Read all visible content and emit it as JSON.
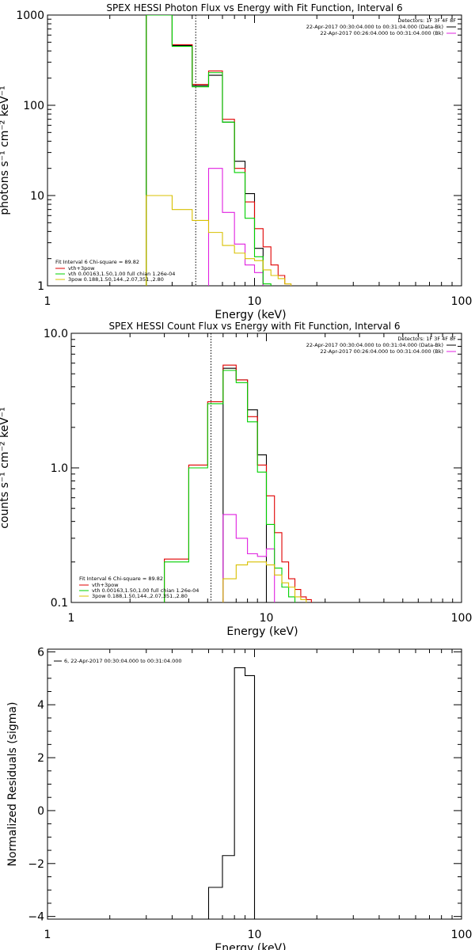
{
  "chart_data": [
    {
      "type": "step",
      "title": "SPEX HESSI Photon Flux vs Energy with Fit Function, Interval 6",
      "xlabel": "Energy (keV)",
      "ylabel": "photons s⁻¹ cm⁻² keV⁻¹",
      "xscale": "log",
      "yscale": "log",
      "xlim": [
        1,
        100
      ],
      "ylim": [
        1,
        1000
      ],
      "xticks": [
        {
          "value": 1,
          "label": "1"
        },
        {
          "value": 10,
          "label": "10"
        },
        {
          "value": 100,
          "label": "100"
        }
      ],
      "yticks": [
        {
          "value": 1,
          "label": "1"
        },
        {
          "value": 10,
          "label": "10"
        },
        {
          "value": 100,
          "label": "100"
        },
        {
          "value": 1000,
          "label": "1000"
        }
      ],
      "vline": 5.2,
      "bin_edges": [
        3,
        4,
        5,
        6,
        7,
        8,
        9,
        10,
        11,
        12,
        13,
        14,
        15,
        16,
        17,
        18
      ],
      "legend_top": {
        "header": "Detectors: 1F 3F 4F 8F",
        "entries": [
          {
            "label": "22-Apr-2017 00:30:04.000 to 00:31:04.000 (Data-Bk)",
            "color": "#000000"
          },
          {
            "label": "22-Apr-2017 00:26:04.000 to 00:31:04.000 (Bk)",
            "color": "#e020e0"
          }
        ]
      },
      "legend_bottom": {
        "header": "Fit Interval  6   Chi-square = 89.82",
        "entries": [
          {
            "label": "vth+3pow",
            "color": "#e00000"
          },
          {
            "label": "vth 0.00163,1.50,1.00  full chian 1.26e-04",
            "color": "#00d000"
          },
          {
            "label": "3pow 0.188,1.50,144.,2.07,351.,2.80",
            "color": "#d8c000"
          }
        ]
      },
      "series": [
        {
          "color": "#000000",
          "values": [
            1000,
            460,
            165,
            215,
            65,
            24,
            10.5,
            2.6,
            null,
            null,
            null,
            null,
            null,
            null,
            null
          ]
        },
        {
          "color": "#e020e0",
          "values": [
            null,
            null,
            null,
            20,
            6.5,
            2.9,
            1.7,
            1.4,
            null,
            null,
            null,
            null,
            null,
            null,
            null
          ]
        },
        {
          "color": "#e00000",
          "values": [
            1000,
            470,
            170,
            240,
            70,
            20,
            8.5,
            4.3,
            2.7,
            1.7,
            1.3,
            1.05,
            null,
            null,
            null
          ]
        },
        {
          "color": "#00d000",
          "values": [
            1000,
            450,
            160,
            230,
            65,
            18,
            5.6,
            2.1,
            1.05,
            null,
            null,
            null,
            null,
            null,
            null
          ]
        },
        {
          "color": "#d8c000",
          "values": [
            10,
            7,
            5.3,
            3.9,
            2.8,
            2.3,
            2.0,
            1.9,
            1.5,
            1.3,
            1.2,
            1.05,
            null,
            null,
            null
          ]
        }
      ]
    },
    {
      "type": "step",
      "title": "SPEX HESSI Count Flux vs Energy with Fit Function, Interval 6",
      "xlabel": "Energy (keV)",
      "ylabel": "counts s⁻¹ cm⁻² keV⁻¹",
      "xscale": "log",
      "yscale": "log",
      "xlim": [
        1,
        100
      ],
      "ylim": [
        0.1,
        10
      ],
      "xticks": [
        {
          "value": 1,
          "label": "1"
        },
        {
          "value": 10,
          "label": "10"
        },
        {
          "value": 100,
          "label": "100"
        }
      ],
      "yticks": [
        {
          "value": 0.1,
          "label": "0.1"
        },
        {
          "value": 1,
          "label": "1.0"
        },
        {
          "value": 10,
          "label": "10.0"
        }
      ],
      "vline": 5.2,
      "bin_edges": [
        3,
        4,
        5,
        6,
        7,
        8,
        9,
        10,
        11,
        12,
        13,
        14,
        15,
        16,
        17,
        18
      ],
      "legend_top": {
        "header": "Detectors: 1F 3F 4F 8F",
        "entries": [
          {
            "label": "22-Apr-2017 00:30:04.000 to 00:31:04.000 (Data-Bk)",
            "color": "#000000"
          },
          {
            "label": "22-Apr-2017 00:26:04.000 to 00:31:04.000 (Bk)",
            "color": "#e020e0"
          }
        ]
      },
      "legend_bottom": {
        "header": "Fit Interval  6   Chi-square = 89.82",
        "entries": [
          {
            "label": "vth+3pow",
            "color": "#e00000"
          },
          {
            "label": "vth 0.00163,1.50,1.00  full chian 1.26e-04",
            "color": "#00d000"
          },
          {
            "label": "3pow 0.188,1.50,144.,2.07,351.,2.80",
            "color": "#d8c000"
          }
        ]
      },
      "series": [
        {
          "color": "#000000",
          "values": [
            null,
            null,
            null,
            5.5,
            4.5,
            2.7,
            1.25,
            null,
            null,
            null,
            null,
            null,
            null,
            null,
            null
          ]
        },
        {
          "color": "#e020e0",
          "values": [
            null,
            null,
            null,
            0.45,
            0.3,
            0.23,
            0.22,
            0.25,
            null,
            null,
            null,
            null,
            null,
            null,
            null
          ]
        },
        {
          "color": "#e00000",
          "values": [
            0.21,
            1.05,
            3.1,
            5.8,
            4.5,
            2.4,
            1.05,
            0.62,
            0.33,
            0.2,
            0.15,
            0.125,
            0.11,
            0.105,
            null
          ]
        },
        {
          "color": "#00d000",
          "values": [
            0.2,
            1.0,
            3.0,
            5.3,
            4.3,
            2.2,
            0.93,
            0.38,
            0.18,
            0.13,
            0.11,
            null,
            null,
            null,
            null
          ]
        },
        {
          "color": "#d8c000",
          "values": [
            null,
            null,
            null,
            0.15,
            0.19,
            0.2,
            0.2,
            0.19,
            0.16,
            0.14,
            0.13,
            0.11,
            0.105,
            null,
            null
          ]
        }
      ]
    },
    {
      "type": "step",
      "title": "",
      "xlabel": "Energy (keV)",
      "ylabel": "Normalized Residuals (sigma)",
      "xscale": "log",
      "yscale": "linear",
      "xlim": [
        1,
        100
      ],
      "ylim": [
        -4.1,
        6.1
      ],
      "xticks": [
        {
          "value": 1,
          "label": "1"
        },
        {
          "value": 10,
          "label": "10"
        },
        {
          "value": 100,
          "label": "100"
        }
      ],
      "yticks": [
        {
          "value": -4,
          "label": "−4"
        },
        {
          "value": -2,
          "label": "−2"
        },
        {
          "value": 0,
          "label": "0"
        },
        {
          "value": 2,
          "label": "2"
        },
        {
          "value": 4,
          "label": "4"
        },
        {
          "value": 6,
          "label": "6"
        }
      ],
      "legend_top": {
        "header": "",
        "entries": [
          {
            "label": "6, 22-Apr-2017 00:30:04.000 to 00:31:04.000",
            "color": "#000000"
          }
        ]
      },
      "series": [
        {
          "color": "#000000",
          "bin_edges": [
            6,
            7,
            8,
            9,
            10,
            11
          ],
          "values": [
            -2.9,
            -1.7,
            5.4,
            5.1,
            -4.1
          ]
        }
      ]
    }
  ]
}
